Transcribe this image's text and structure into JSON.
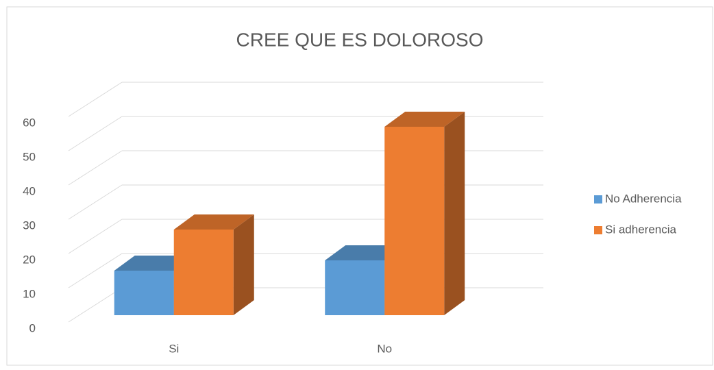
{
  "chart_data": {
    "type": "bar3d",
    "title": "CREE QUE ES DOLOROSO",
    "categories": [
      "Si",
      "No"
    ],
    "series": [
      {
        "name": "No Adherencia",
        "color": "#5b9bd5",
        "values": [
          13,
          16
        ]
      },
      {
        "name": "Si adherencia",
        "color": "#ed7d31",
        "values": [
          25,
          55
        ]
      }
    ],
    "ylim": [
      0,
      60
    ],
    "yticks": [
      0,
      10,
      20,
      30,
      40,
      50,
      60
    ],
    "grid": true,
    "legend": "right"
  }
}
